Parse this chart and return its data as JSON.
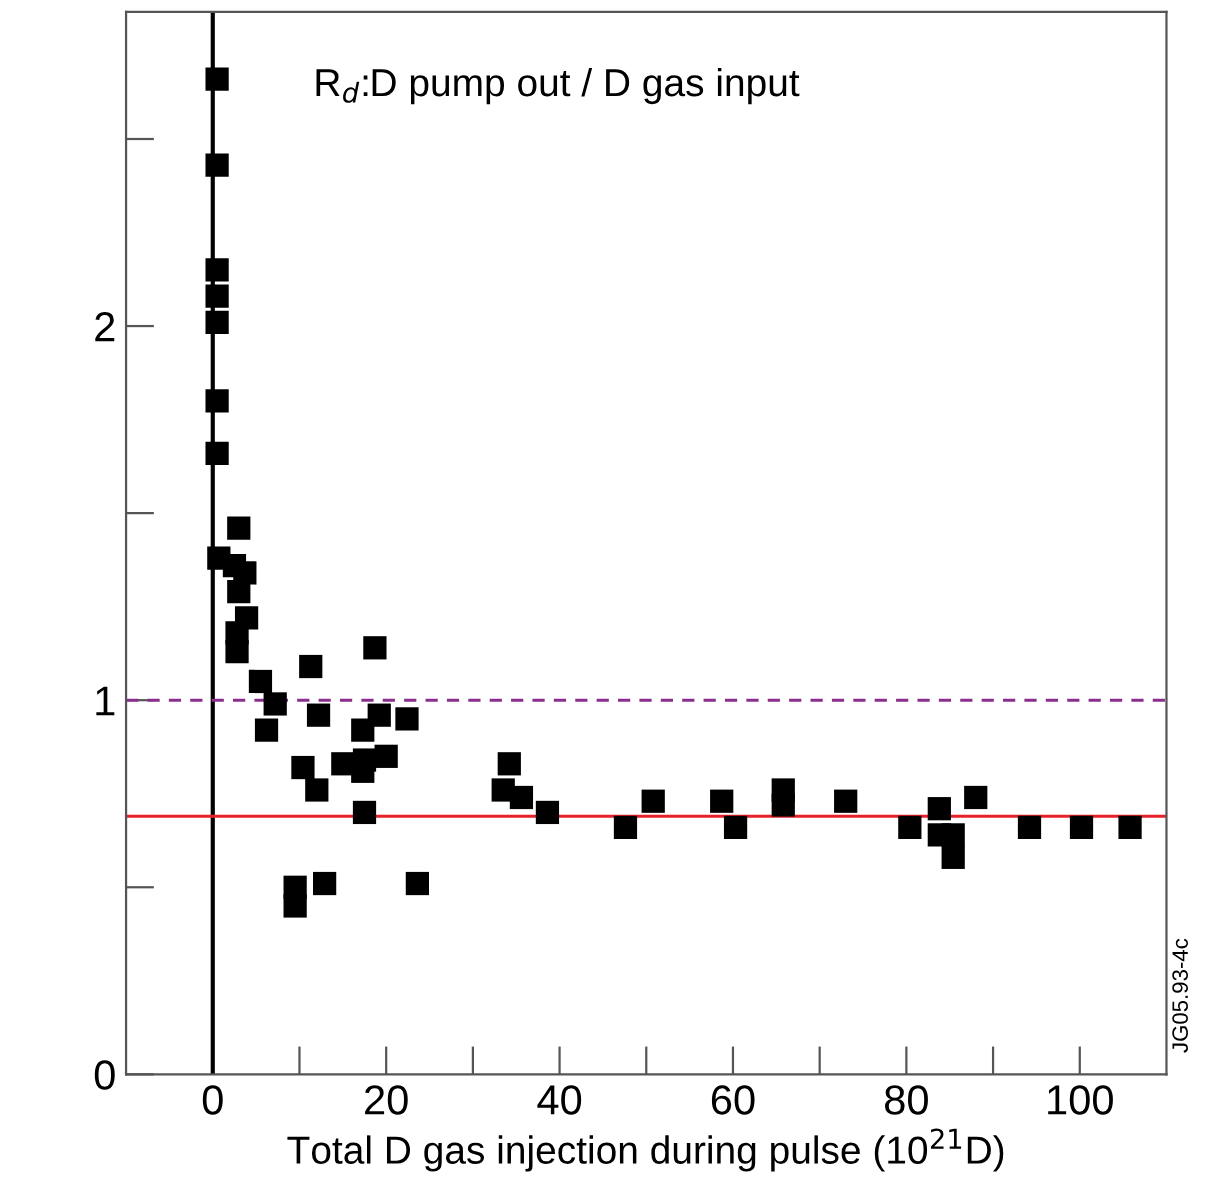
{
  "chart_data": {
    "type": "scatter",
    "xlabel": "Total D gas injection during pulse (10$^{21}$D)",
    "annotations": [
      "R$_{d}$:D pump out / D gas input",
      "JG05.93-4c"
    ],
    "x": [
      0.5,
      0.5,
      0.5,
      0.5,
      0.5,
      0.5,
      0.5,
      0.7,
      2.5,
      3.7,
      3,
      3.9,
      2.8,
      2.8,
      3,
      5.5,
      7.2,
      6.2,
      11.3,
      12.2,
      18.7,
      19.2,
      22.4,
      17.3,
      10.4,
      12,
      15,
      17.3,
      17.5,
      20,
      17.5,
      9.5,
      9.5,
      12.9,
      23.6,
      33.5,
      34.2,
      35.6,
      38.6,
      47.6,
      50.8,
      58.7,
      60.3,
      65.8,
      65.8,
      73,
      80.4,
      83.8,
      83.8,
      85.4,
      85.4,
      88,
      94.2,
      100.2,
      105.8
    ],
    "values": [
      2.66,
      2.43,
      2.15,
      2.08,
      2.01,
      1.8,
      1.66,
      1.38,
      1.36,
      1.34,
      1.29,
      1.22,
      1.18,
      1.13,
      1.46,
      1.05,
      0.99,
      0.92,
      1.09,
      0.96,
      1.14,
      0.96,
      0.95,
      0.92,
      0.82,
      0.76,
      0.83,
      0.81,
      0.84,
      0.85,
      0.7,
      0.5,
      0.45,
      0.51,
      0.51,
      0.76,
      0.83,
      0.74,
      0.7,
      0.66,
      0.73,
      0.73,
      0.66,
      0.76,
      0.72,
      0.73,
      0.66,
      0.71,
      0.64,
      0.64,
      0.58,
      0.74,
      0.66,
      0.66,
      0.66
    ],
    "color": "#000000",
    "marker": "square",
    "xlim": [
      -10,
      110
    ],
    "ylim": [
      0,
      2.84
    ],
    "xticks": [
      0,
      {
        "value": 10,
        "label": null
      },
      20,
      {
        "value": 30,
        "label": null
      },
      40,
      {
        "value": 50,
        "label": null
      },
      60,
      {
        "value": 70,
        "label": null
      },
      80,
      {
        "value": 90,
        "label": null
      },
      100
    ],
    "yticks": [
      0,
      {
        "value": 0.5,
        "label": null
      },
      1,
      {
        "value": 1.5,
        "label": null
      },
      2,
      {
        "value": 2.5,
        "label": null
      }
    ],
    "ref_lines": [
      {
        "axis": "x",
        "value": 0,
        "color": "#000000",
        "line_style": "solid"
      },
      {
        "axis": "y",
        "value": 1,
        "color": "#8b2f8f",
        "line_style": "dashed"
      },
      {
        "axis": "y",
        "value": 0.69,
        "color": "#e8202a",
        "line_style": "solid"
      }
    ],
    "grid": false,
    "legend": false
  }
}
